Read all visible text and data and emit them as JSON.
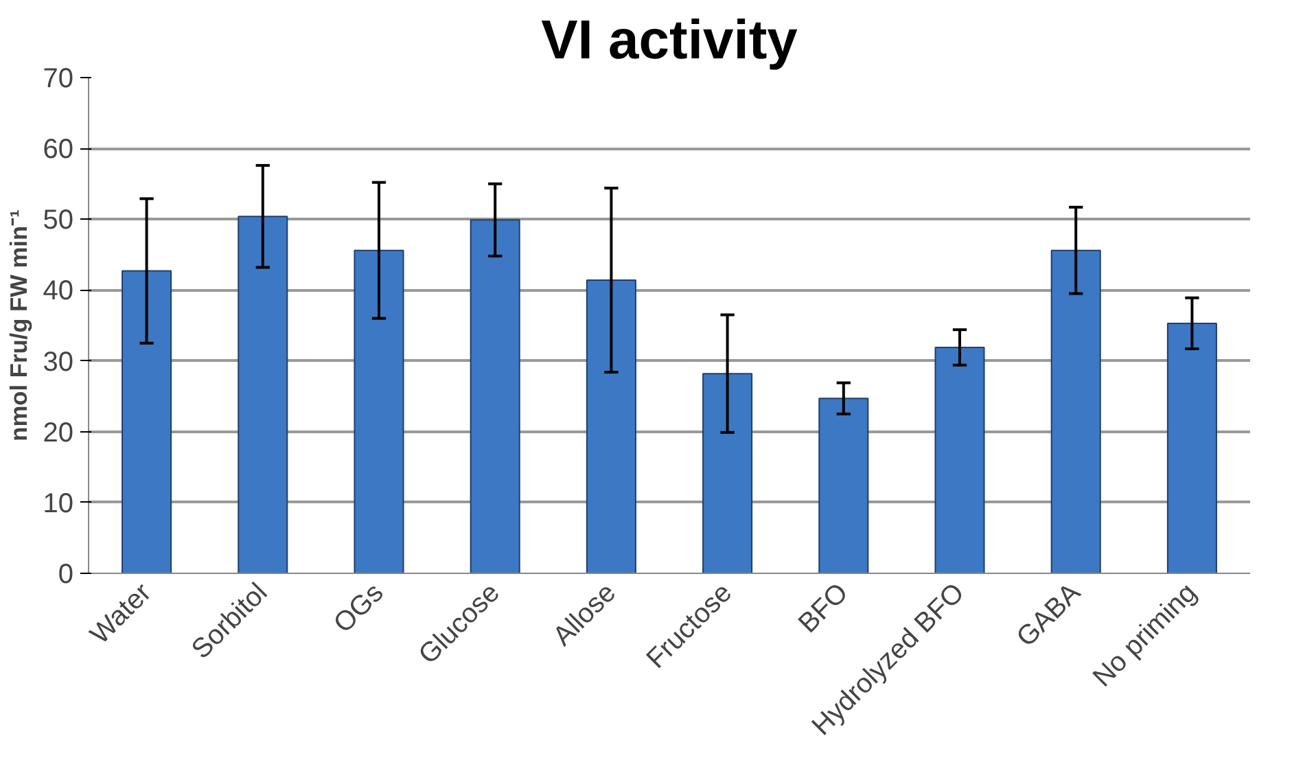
{
  "chart_data": {
    "type": "bar",
    "title": "VI activity",
    "ylabel": "nmol Fru/g FW min⁻¹",
    "categories": [
      "Water",
      "Sorbitol",
      "OGs",
      "Glucose",
      "Allose",
      "Fructose",
      "BFO",
      "Hydrolyzed BFO",
      "GABA",
      "No priming"
    ],
    "values": [
      42.7,
      50.4,
      45.6,
      49.9,
      41.4,
      28.2,
      24.7,
      31.9,
      45.6,
      35.3
    ],
    "errors": [
      10.2,
      7.2,
      9.6,
      5.1,
      13.0,
      8.3,
      2.2,
      2.5,
      6.1,
      3.6
    ],
    "color": "#3d78c4",
    "ylim": [
      0,
      70
    ],
    "yticks": [
      0,
      10,
      20,
      30,
      40,
      50,
      60,
      70
    ],
    "grid": "y"
  }
}
